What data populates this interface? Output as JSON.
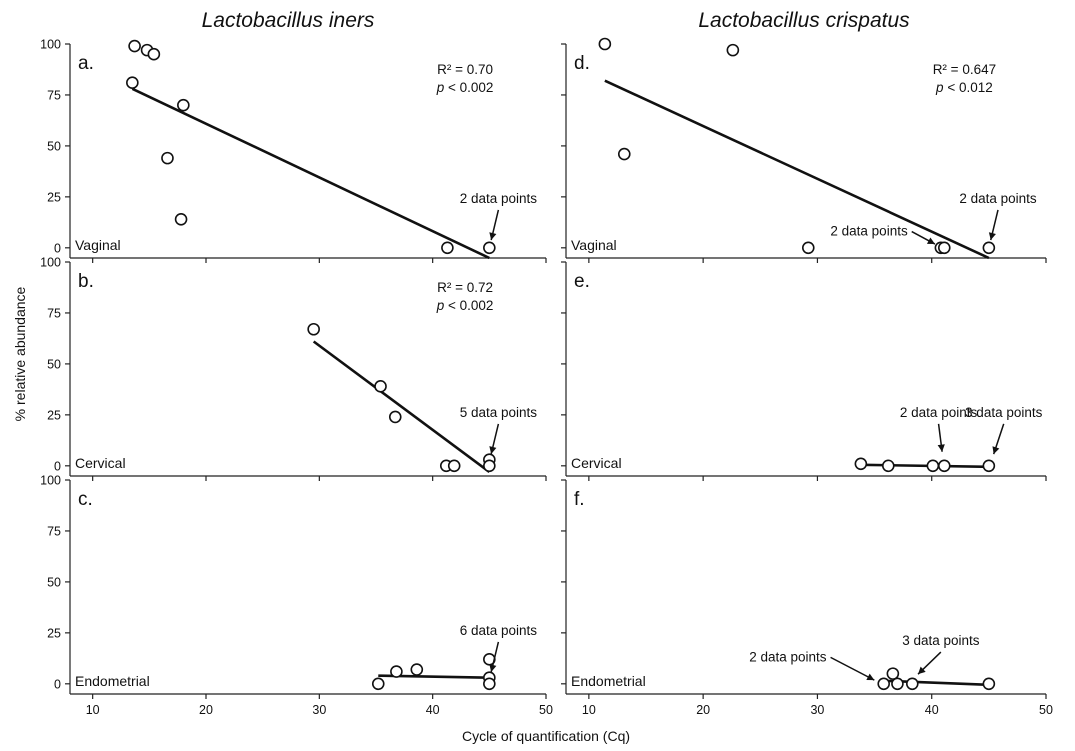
{
  "column_titles": [
    "Lactobacillus iners",
    "Lactobacillus crispatus"
  ],
  "x_axis_title": "Cycle of quantification (Cq)",
  "y_axis_title": "% relative abundance",
  "chart_data": [
    {
      "type": "scatter",
      "panel": "a.",
      "region": "Vaginal",
      "xlim": [
        8,
        50
      ],
      "ylim": [
        -5,
        100
      ],
      "x_ticks": [
        10,
        20,
        30,
        40,
        50
      ],
      "y_ticks": [
        0,
        25,
        50,
        75,
        100
      ],
      "show_y_tick_labels": true,
      "points": [
        {
          "x": 13.5,
          "y": 81
        },
        {
          "x": 13.7,
          "y": 99
        },
        {
          "x": 14.8,
          "y": 97
        },
        {
          "x": 15.4,
          "y": 95
        },
        {
          "x": 16.6,
          "y": 44
        },
        {
          "x": 17.8,
          "y": 14
        },
        {
          "x": 18.0,
          "y": 70
        },
        {
          "x": 41.3,
          "y": 0
        },
        {
          "x": 45.0,
          "y": 0
        }
      ],
      "trendline": {
        "x": [
          13.5,
          45.0
        ],
        "y": [
          78,
          -5
        ]
      },
      "stats": {
        "r2": "R² = 0.70",
        "p_prefix": "p",
        "p_rest": " < 0.002"
      },
      "callouts": [
        {
          "text": "2 data points",
          "x": 45.0,
          "y": 0,
          "text_x": 45.8,
          "text_y": 22
        }
      ]
    },
    {
      "type": "scatter",
      "panel": "b.",
      "region": "Cervical",
      "xlim": [
        8,
        50
      ],
      "ylim": [
        -5,
        100
      ],
      "x_ticks": [
        10,
        20,
        30,
        40,
        50
      ],
      "y_ticks": [
        0,
        25,
        50,
        75,
        100
      ],
      "show_y_tick_labels": true,
      "points": [
        {
          "x": 29.5,
          "y": 67
        },
        {
          "x": 35.4,
          "y": 39
        },
        {
          "x": 36.7,
          "y": 24
        },
        {
          "x": 41.2,
          "y": 0
        },
        {
          "x": 41.9,
          "y": 0
        },
        {
          "x": 45.0,
          "y": 3
        },
        {
          "x": 45.0,
          "y": 0
        }
      ],
      "trendline": {
        "x": [
          29.5,
          45.0
        ],
        "y": [
          61,
          -3
        ]
      },
      "stats": {
        "r2": "R² = 0.72",
        "p_prefix": "p",
        "p_rest": " < 0.002"
      },
      "callouts": [
        {
          "text": "5 data points",
          "x": 45.0,
          "y": 2,
          "text_x": 45.8,
          "text_y": 24
        }
      ]
    },
    {
      "type": "scatter",
      "panel": "c.",
      "region": "Endometrial",
      "xlim": [
        8,
        50
      ],
      "ylim": [
        -5,
        100
      ],
      "x_ticks": [
        10,
        20,
        30,
        40,
        50
      ],
      "y_ticks": [
        0,
        25,
        50,
        75,
        100
      ],
      "show_y_tick_labels": true,
      "points": [
        {
          "x": 35.2,
          "y": 0
        },
        {
          "x": 36.8,
          "y": 6
        },
        {
          "x": 38.6,
          "y": 7
        },
        {
          "x": 45.0,
          "y": 12
        },
        {
          "x": 45.0,
          "y": 3
        },
        {
          "x": 45.0,
          "y": 0
        }
      ],
      "trendline": {
        "x": [
          35.2,
          45.0
        ],
        "y": [
          4,
          3
        ]
      },
      "stats": null,
      "callouts": [
        {
          "text": "6 data points",
          "x": 45.0,
          "y": 2,
          "text_x": 45.8,
          "text_y": 24
        }
      ]
    },
    {
      "type": "scatter",
      "panel": "d.",
      "region": "Vaginal",
      "xlim": [
        8,
        50
      ],
      "ylim": [
        -5,
        100
      ],
      "x_ticks": [
        10,
        20,
        30,
        40,
        50
      ],
      "y_ticks": [
        0,
        25,
        50,
        75,
        100
      ],
      "show_y_tick_labels": false,
      "points": [
        {
          "x": 11.4,
          "y": 100
        },
        {
          "x": 13.1,
          "y": 46
        },
        {
          "x": 22.6,
          "y": 97
        },
        {
          "x": 29.2,
          "y": 0
        },
        {
          "x": 40.8,
          "y": 0
        },
        {
          "x": 41.1,
          "y": 0
        },
        {
          "x": 45.0,
          "y": 0
        }
      ],
      "trendline": {
        "x": [
          11.4,
          45.0
        ],
        "y": [
          82,
          -5
        ]
      },
      "stats": {
        "r2": "R² = 0.647",
        "p_prefix": "p",
        "p_rest": " < 0.012"
      },
      "callouts": [
        {
          "text": "2 data points",
          "x": 45.0,
          "y": 0,
          "text_x": 45.8,
          "text_y": 22
        },
        {
          "text": "2 data points",
          "x": 40.9,
          "y": 0,
          "text_x": 37.9,
          "text_y": 6,
          "side": "left"
        }
      ]
    },
    {
      "type": "scatter",
      "panel": "e.",
      "region": "Cervical",
      "xlim": [
        8,
        50
      ],
      "ylim": [
        -5,
        100
      ],
      "x_ticks": [
        10,
        20,
        30,
        40,
        50
      ],
      "y_ticks": [
        0,
        25,
        50,
        75,
        100
      ],
      "show_y_tick_labels": false,
      "points": [
        {
          "x": 33.8,
          "y": 1
        },
        {
          "x": 36.2,
          "y": 0
        },
        {
          "x": 40.1,
          "y": 0
        },
        {
          "x": 41.1,
          "y": 0
        },
        {
          "x": 45.0,
          "y": 0
        }
      ],
      "trendline": {
        "x": [
          33.8,
          45.0
        ],
        "y": [
          0.5,
          -0.5
        ]
      },
      "stats": null,
      "callouts": [
        {
          "text": "2 data points",
          "x": 41.0,
          "y": 3,
          "text_x": 40.6,
          "text_y": 24
        },
        {
          "text": "3 data points",
          "x": 45.2,
          "y": 2,
          "text_x": 46.3,
          "text_y": 24
        }
      ]
    },
    {
      "type": "scatter",
      "panel": "f.",
      "region": "Endometrial",
      "xlim": [
        8,
        50
      ],
      "ylim": [
        -5,
        100
      ],
      "x_ticks": [
        10,
        20,
        30,
        40,
        50
      ],
      "y_ticks": [
        0,
        25,
        50,
        75,
        100
      ],
      "show_y_tick_labels": false,
      "points": [
        {
          "x": 35.8,
          "y": 0
        },
        {
          "x": 36.6,
          "y": 5
        },
        {
          "x": 37.0,
          "y": 0
        },
        {
          "x": 38.3,
          "y": 0
        },
        {
          "x": 45.0,
          "y": 0
        }
      ],
      "trendline": {
        "x": [
          35.8,
          45.0
        ],
        "y": [
          1.5,
          -0.5
        ]
      },
      "stats": null,
      "callouts": [
        {
          "text": "2 data points",
          "x": 35.6,
          "y": 0,
          "text_x": 30.8,
          "text_y": 11,
          "side": "left"
        },
        {
          "text": "3 data points",
          "x": 38.3,
          "y": 2,
          "text_x": 40.8,
          "text_y": 19
        }
      ]
    }
  ]
}
